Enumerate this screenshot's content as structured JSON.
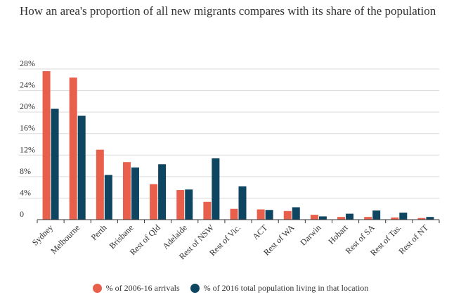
{
  "title": "How an area's proportion of all new migrants compares with its share of the population",
  "chart_data": {
    "type": "bar",
    "categories": [
      "Sydney",
      "Melbourne",
      "Perth",
      "Brisbane",
      "Rest of Qld",
      "Adelaide",
      "Rest of NSW",
      "Rest of Vic.",
      "ACT",
      "Rest of WA",
      "Darwin",
      "Hobart",
      "Rest of SA",
      "Rest of Tas.",
      "Rest of NT"
    ],
    "series": [
      {
        "name": "% of 2006-16 arrivals",
        "color": "#e8604c",
        "values": [
          27.6,
          26.4,
          13.0,
          10.7,
          6.6,
          5.5,
          3.3,
          2.0,
          1.9,
          1.6,
          0.9,
          0.5,
          0.5,
          0.4,
          0.3
        ]
      },
      {
        "name": "% of 2016 total population living in that location",
        "color": "#0e4561",
        "values": [
          20.6,
          19.3,
          8.3,
          9.7,
          10.3,
          5.6,
          11.4,
          6.2,
          1.8,
          2.3,
          0.6,
          1.1,
          1.7,
          1.3,
          0.5
        ]
      }
    ],
    "ylim": [
      0,
      28
    ],
    "yticks": [
      0,
      4,
      8,
      12,
      16,
      20,
      24,
      28
    ],
    "ytick_labels": [
      "0",
      "4%",
      "8%",
      "12%",
      "16%",
      "20%",
      "24%",
      "28%"
    ],
    "grid": true,
    "legend_position": "bottom"
  }
}
